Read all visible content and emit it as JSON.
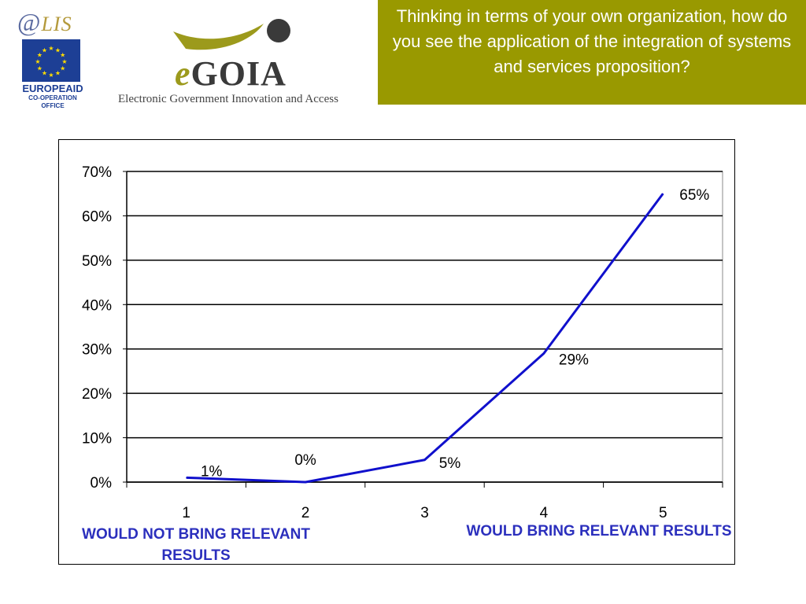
{
  "header": {
    "alis_logo": {
      "at": "@",
      "lis": "LIS"
    },
    "europeaid": {
      "name": "EUROPEAID",
      "office": "CO-OPERATION OFFICE"
    },
    "egoia_logo": {
      "e": "e",
      "name": "GOIA",
      "tagline": "Electronic Government Innovation and Access"
    },
    "title": "Thinking in terms of your own organization, how do you see the application of the integration of systems and services proposition?"
  },
  "colors": {
    "title_bg": "#999900",
    "series_line": "#1010cc",
    "category_label": "#2b2fbd",
    "eu_blue": "#1d3f95",
    "eu_star": "#ffdd00"
  },
  "chart_data": {
    "type": "line",
    "title": "",
    "xlabel": "",
    "ylabel": "",
    "categories": [
      "1",
      "2",
      "3",
      "4",
      "5"
    ],
    "series": [
      {
        "values": [
          1,
          0,
          5,
          29,
          65
        ]
      }
    ],
    "data_labels": [
      "1%",
      "0%",
      "5%",
      "29%",
      "65%"
    ],
    "ylim": [
      0,
      70
    ],
    "y_ticks": [
      0,
      10,
      20,
      30,
      40,
      50,
      60,
      70
    ],
    "y_tick_labels": [
      "0%",
      "10%",
      "20%",
      "30%",
      "40%",
      "50%",
      "60%",
      "70%"
    ],
    "grid": true,
    "legend": "none"
  },
  "scale_labels": {
    "low": "WOULD NOT BRING RELEVANT RESULTS",
    "high": "WOULD BRING RELEVANT RESULTS"
  }
}
